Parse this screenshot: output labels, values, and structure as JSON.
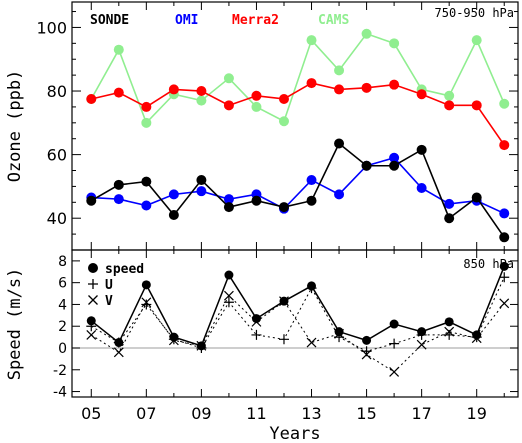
{
  "chart_data": [
    {
      "type": "line",
      "panel": "top",
      "annotation": "750-950 hPa",
      "ylabel": "Ozone (ppb)",
      "xlabel": "",
      "ylim": [
        30,
        108
      ],
      "yticks": [
        40,
        60,
        80,
        100
      ],
      "x": [
        2005,
        2006,
        2007,
        2008,
        2009,
        2010,
        2011,
        2012,
        2013,
        2014,
        2015,
        2016,
        2017,
        2018,
        2019,
        2020
      ],
      "series": [
        {
          "name": "SONDE",
          "color": "#000000",
          "values": [
            45.5,
            50.5,
            51.5,
            41.0,
            52.0,
            43.5,
            45.5,
            43.5,
            45.5,
            63.5,
            56.5,
            56.5,
            61.5,
            40.0,
            46.5,
            34.0
          ]
        },
        {
          "name": "OMI",
          "color": "#0000ff",
          "values": [
            46.5,
            46.0,
            44.0,
            47.5,
            48.5,
            46.0,
            47.5,
            43.0,
            52.0,
            47.5,
            56.5,
            59.0,
            49.5,
            44.5,
            45.5,
            41.5
          ]
        },
        {
          "name": "Merra2",
          "color": "#ff0000",
          "values": [
            77.5,
            79.5,
            75.0,
            80.5,
            80.0,
            75.5,
            78.5,
            77.5,
            82.5,
            80.5,
            81.0,
            82.0,
            79.0,
            75.5,
            75.5,
            63.0
          ]
        },
        {
          "name": "CAMS",
          "color": "#90ee90",
          "values": [
            77.5,
            93.0,
            70.0,
            79.0,
            77.0,
            84.0,
            75.0,
            70.5,
            96.0,
            86.5,
            98.0,
            95.0,
            80.5,
            78.5,
            96.0,
            76.0
          ]
        }
      ]
    },
    {
      "type": "line",
      "panel": "bottom",
      "annotation": "850 hPa",
      "ylabel": "Speed (m/s)",
      "xlabel": "Years",
      "ylim": [
        -4.5,
        9
      ],
      "yticks": [
        -4,
        -2,
        0,
        2,
        4,
        6,
        8
      ],
      "x": [
        2005,
        2006,
        2007,
        2008,
        2009,
        2010,
        2011,
        2012,
        2013,
        2014,
        2015,
        2016,
        2017,
        2018,
        2019,
        2020
      ],
      "xticks": [
        "05",
        "07",
        "09",
        "11",
        "13",
        "15",
        "17",
        "19"
      ],
      "series": [
        {
          "name": "speed",
          "marker": "dot",
          "values": [
            2.5,
            0.5,
            5.8,
            1.0,
            0.2,
            6.7,
            2.7,
            4.3,
            5.7,
            1.5,
            0.7,
            2.2,
            1.5,
            2.4,
            1.2,
            7.5
          ]
        },
        {
          "name": "U",
          "marker": "plus",
          "values": [
            2.0,
            0.5,
            4.0,
            0.8,
            0.0,
            4.2,
            1.2,
            0.8,
            5.5,
            1.0,
            -0.3,
            0.4,
            1.2,
            1.2,
            1.0,
            6.5
          ]
        },
        {
          "name": "V",
          "marker": "cross",
          "values": [
            1.2,
            -0.4,
            4.2,
            0.7,
            0.2,
            4.8,
            2.4,
            4.3,
            0.5,
            1.3,
            -0.6,
            -2.2,
            0.3,
            1.5,
            0.9,
            4.1
          ]
        }
      ],
      "zero_line": true
    }
  ]
}
